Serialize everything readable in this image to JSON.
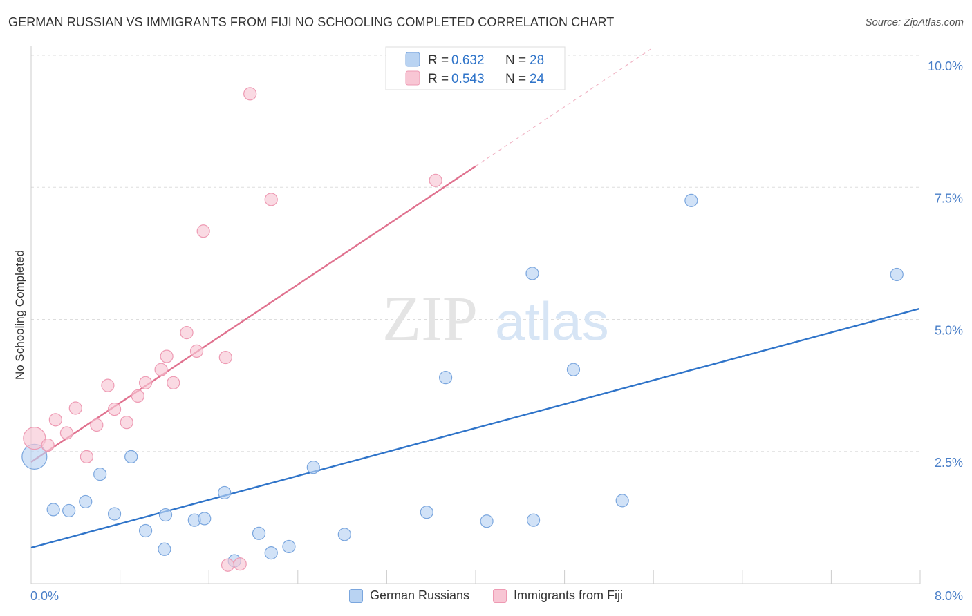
{
  "header": {
    "title": "GERMAN RUSSIAN VS IMMIGRANTS FROM FIJI NO SCHOOLING COMPLETED CORRELATION CHART",
    "source": "Source: ZipAtlas.com"
  },
  "watermark": {
    "zip": "ZIP",
    "atlas": "atlas"
  },
  "colors": {
    "blue_fill": "#b9d3f2",
    "blue_stroke": "#7aa6de",
    "blue_line": "#2f74c9",
    "pink_fill": "#f8c6d4",
    "pink_stroke": "#ee9ab3",
    "pink_line": "#e0728f",
    "grid": "#dddddd",
    "tick_text": "#4a7fc8"
  },
  "chart_data": {
    "type": "scatter",
    "title": "GERMAN RUSSIAN VS IMMIGRANTS FROM FIJI NO SCHOOLING COMPLETED CORRELATION CHART",
    "xlabel": "",
    "ylabel": "No Schooling Completed",
    "xlim": [
      0,
      8
    ],
    "ylim": [
      0,
      10
    ],
    "x_tick_labels": [
      "0.0%",
      "8.0%"
    ],
    "y_ticks": [
      2.5,
      5.0,
      7.5,
      10.0
    ],
    "y_tick_labels": [
      "2.5%",
      "5.0%",
      "7.5%",
      "10.0%"
    ],
    "legend": [
      {
        "r_label": "R =",
        "r_value": "0.632",
        "n_label": "N =",
        "n_value": "28"
      },
      {
        "r_label": "R =",
        "r_value": "0.543",
        "n_label": "N =",
        "n_value": "24"
      }
    ],
    "series": [
      {
        "name": "German Russians",
        "color": "blue",
        "points": [
          [
            0.03,
            2.4,
            18
          ],
          [
            0.2,
            1.4,
            9
          ],
          [
            0.34,
            1.38,
            9
          ],
          [
            0.49,
            1.55,
            9
          ],
          [
            0.62,
            2.07,
            9
          ],
          [
            0.75,
            1.32,
            9
          ],
          [
            0.9,
            2.4,
            9
          ],
          [
            1.03,
            1.0,
            9
          ],
          [
            1.2,
            0.65,
            9
          ],
          [
            1.21,
            1.3,
            9
          ],
          [
            1.47,
            1.2,
            9
          ],
          [
            1.56,
            1.23,
            9
          ],
          [
            1.74,
            1.72,
            9
          ],
          [
            1.83,
            0.43,
            9
          ],
          [
            2.05,
            0.95,
            9
          ],
          [
            2.16,
            0.58,
            9
          ],
          [
            2.32,
            0.7,
            9
          ],
          [
            2.54,
            2.2,
            9
          ],
          [
            2.82,
            0.93,
            9
          ],
          [
            3.56,
            1.35,
            9
          ],
          [
            3.73,
            3.9,
            9
          ],
          [
            4.1,
            1.18,
            9
          ],
          [
            4.51,
            5.87,
            9
          ],
          [
            4.52,
            1.2,
            9
          ],
          [
            4.88,
            4.05,
            9
          ],
          [
            5.32,
            1.57,
            9
          ],
          [
            5.94,
            7.25,
            9
          ],
          [
            7.79,
            5.85,
            9
          ]
        ],
        "trend": {
          "x0": 0,
          "y0": 0.68,
          "x1": 7.99,
          "y1": 5.2
        }
      },
      {
        "name": "Immigrants from Fiji",
        "color": "pink",
        "points": [
          [
            0.03,
            2.75,
            16
          ],
          [
            0.15,
            2.62,
            9
          ],
          [
            0.22,
            3.1,
            9
          ],
          [
            0.32,
            2.85,
            9
          ],
          [
            0.4,
            3.32,
            9
          ],
          [
            0.5,
            2.4,
            9
          ],
          [
            0.59,
            3.0,
            9
          ],
          [
            0.69,
            3.75,
            9
          ],
          [
            0.75,
            3.3,
            9
          ],
          [
            0.86,
            3.05,
            9
          ],
          [
            0.96,
            3.55,
            9
          ],
          [
            1.03,
            3.8,
            9
          ],
          [
            1.17,
            4.05,
            9
          ],
          [
            1.22,
            4.3,
            9
          ],
          [
            1.28,
            3.8,
            9
          ],
          [
            1.4,
            4.75,
            9
          ],
          [
            1.49,
            4.4,
            9
          ],
          [
            1.55,
            6.67,
            9
          ],
          [
            1.75,
            4.28,
            9
          ],
          [
            1.77,
            0.35,
            9
          ],
          [
            1.88,
            0.37,
            9
          ],
          [
            1.97,
            9.27,
            9
          ],
          [
            2.16,
            7.27,
            9
          ],
          [
            3.64,
            7.63,
            9
          ]
        ],
        "trend": {
          "x0": 0,
          "y0": 2.3,
          "x1": 4.0,
          "y1": 7.9
        },
        "trend_dashed": {
          "x0": 4.0,
          "y0": 7.9,
          "x1": 5.6,
          "y1": 10.15
        }
      }
    ]
  }
}
